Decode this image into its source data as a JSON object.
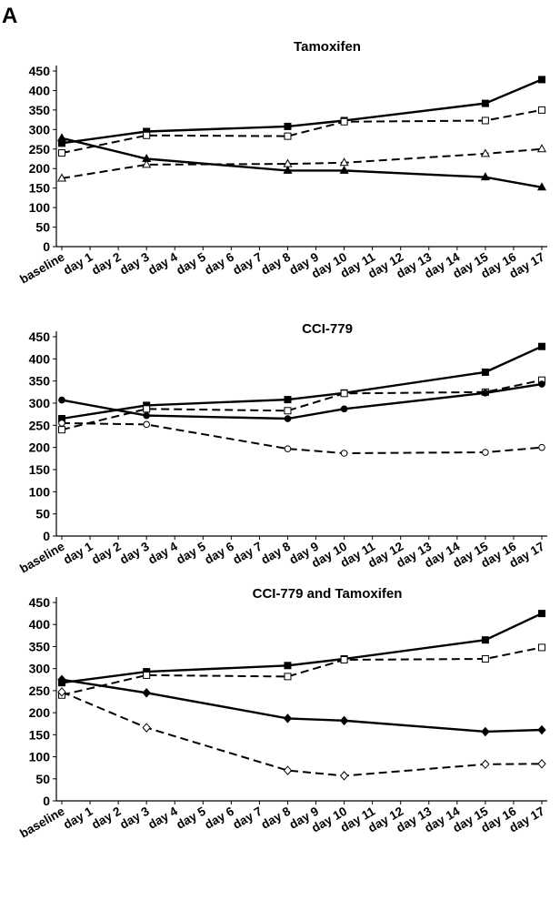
{
  "figure": {
    "panel_label": "A"
  },
  "chart_data": [
    {
      "type": "line",
      "title": "Tamoxifen",
      "xlabel": "",
      "ylabel": "",
      "categories": [
        "baseline",
        "day 1",
        "day 2",
        "day 3",
        "day 4",
        "day 5",
        "day 6",
        "day 7",
        "day 8",
        "day 9",
        "day 10",
        "day 11",
        "day 12",
        "day 13",
        "day 14",
        "day 15",
        "day 16",
        "day 17"
      ],
      "ylim": [
        0,
        450
      ],
      "yticks": [
        0,
        50,
        100,
        150,
        200,
        250,
        300,
        350,
        400,
        450
      ],
      "grid": false,
      "legend": "none",
      "series": [
        {
          "marker": "filled-square",
          "line": "solid",
          "points": [
            [
              "baseline",
              265
            ],
            [
              "day 3",
              295
            ],
            [
              "day 8",
              308
            ],
            [
              "day 10",
              323
            ],
            [
              "day 15",
              367
            ],
            [
              "day 17",
              428
            ]
          ]
        },
        {
          "marker": "open-square",
          "line": "dashed",
          "points": [
            [
              "baseline",
              240
            ],
            [
              "day 3",
              285
            ],
            [
              "day 8",
              283
            ],
            [
              "day 10",
              320
            ],
            [
              "day 15",
              323
            ],
            [
              "day 17",
              350
            ]
          ]
        },
        {
          "marker": "filled-triangle",
          "line": "solid",
          "points": [
            [
              "baseline",
              278
            ],
            [
              "day 3",
              225
            ],
            [
              "day 8",
              195
            ],
            [
              "day 10",
              195
            ],
            [
              "day 15",
              178
            ],
            [
              "day 17",
              152
            ]
          ]
        },
        {
          "marker": "open-triangle",
          "line": "dashed",
          "points": [
            [
              "baseline",
              175
            ],
            [
              "day 3",
              210
            ],
            [
              "day 8",
              212
            ],
            [
              "day 10",
              215
            ],
            [
              "day 15",
              238
            ],
            [
              "day 17",
              250
            ]
          ]
        }
      ]
    },
    {
      "type": "line",
      "title": "CCI-779",
      "xlabel": "",
      "ylabel": "",
      "categories": [
        "baseline",
        "day 1",
        "day 2",
        "day 3",
        "day 4",
        "day 5",
        "day 6",
        "day 7",
        "day 8",
        "day 9",
        "day 10",
        "day 11",
        "day 12",
        "day 13",
        "day 14",
        "day 15",
        "day 16",
        "day 17"
      ],
      "ylim": [
        0,
        450
      ],
      "yticks": [
        0,
        50,
        100,
        150,
        200,
        250,
        300,
        350,
        400,
        450
      ],
      "grid": false,
      "legend": "none",
      "series": [
        {
          "marker": "filled-square",
          "line": "solid",
          "points": [
            [
              "baseline",
              265
            ],
            [
              "day 3",
              295
            ],
            [
              "day 8",
              308
            ],
            [
              "day 10",
              323
            ],
            [
              "day 15",
              370
            ],
            [
              "day 17",
              428
            ]
          ]
        },
        {
          "marker": "open-square",
          "line": "dashed",
          "points": [
            [
              "baseline",
              240
            ],
            [
              "day 3",
              287
            ],
            [
              "day 8",
              283
            ],
            [
              "day 10",
              322
            ],
            [
              "day 15",
              325
            ],
            [
              "day 17",
              352
            ]
          ]
        },
        {
          "marker": "filled-circle",
          "line": "solid",
          "points": [
            [
              "baseline",
              307
            ],
            [
              "day 3",
              272
            ],
            [
              "day 8",
              265
            ],
            [
              "day 10",
              287
            ],
            [
              "day 15",
              323
            ],
            [
              "day 17",
              343
            ]
          ]
        },
        {
          "marker": "open-circle",
          "line": "dashed",
          "points": [
            [
              "baseline",
              255
            ],
            [
              "day 3",
              252
            ],
            [
              "day 8",
              197
            ],
            [
              "day 10",
              187
            ],
            [
              "day 15",
              189
            ],
            [
              "day 17",
              200
            ]
          ]
        }
      ]
    },
    {
      "type": "line",
      "title": "CCI-779 and Tamoxifen",
      "xlabel": "",
      "ylabel": "",
      "categories": [
        "baseline",
        "day 1",
        "day 2",
        "day 3",
        "day 4",
        "day 5",
        "day 6",
        "day 7",
        "day 8",
        "day 9",
        "day 10",
        "day 11",
        "day 12",
        "day 13",
        "day 14",
        "day 15",
        "day 16",
        "day 17"
      ],
      "ylim": [
        0,
        450
      ],
      "yticks": [
        0,
        50,
        100,
        150,
        200,
        250,
        300,
        350,
        400,
        450
      ],
      "grid": false,
      "legend": "none",
      "series": [
        {
          "marker": "filled-square",
          "line": "solid",
          "points": [
            [
              "baseline",
              268
            ],
            [
              "day 3",
              293
            ],
            [
              "day 8",
              307
            ],
            [
              "day 10",
              322
            ],
            [
              "day 15",
              365
            ],
            [
              "day 17",
              425
            ]
          ]
        },
        {
          "marker": "open-square",
          "line": "dashed",
          "points": [
            [
              "baseline",
              240
            ],
            [
              "day 3",
              285
            ],
            [
              "day 8",
              282
            ],
            [
              "day 10",
              320
            ],
            [
              "day 15",
              322
            ],
            [
              "day 17",
              348
            ]
          ]
        },
        {
          "marker": "filled-diamond",
          "line": "solid",
          "points": [
            [
              "baseline",
              275
            ],
            [
              "day 3",
              245
            ],
            [
              "day 8",
              187
            ],
            [
              "day 10",
              182
            ],
            [
              "day 15",
              157
            ],
            [
              "day 17",
              161
            ]
          ]
        },
        {
          "marker": "open-diamond",
          "line": "dashed",
          "points": [
            [
              "baseline",
              247
            ],
            [
              "day 3",
              166
            ],
            [
              "day 8",
              69
            ],
            [
              "day 10",
              57
            ],
            [
              "day 15",
              83
            ],
            [
              "day 17",
              84
            ]
          ]
        }
      ]
    }
  ]
}
